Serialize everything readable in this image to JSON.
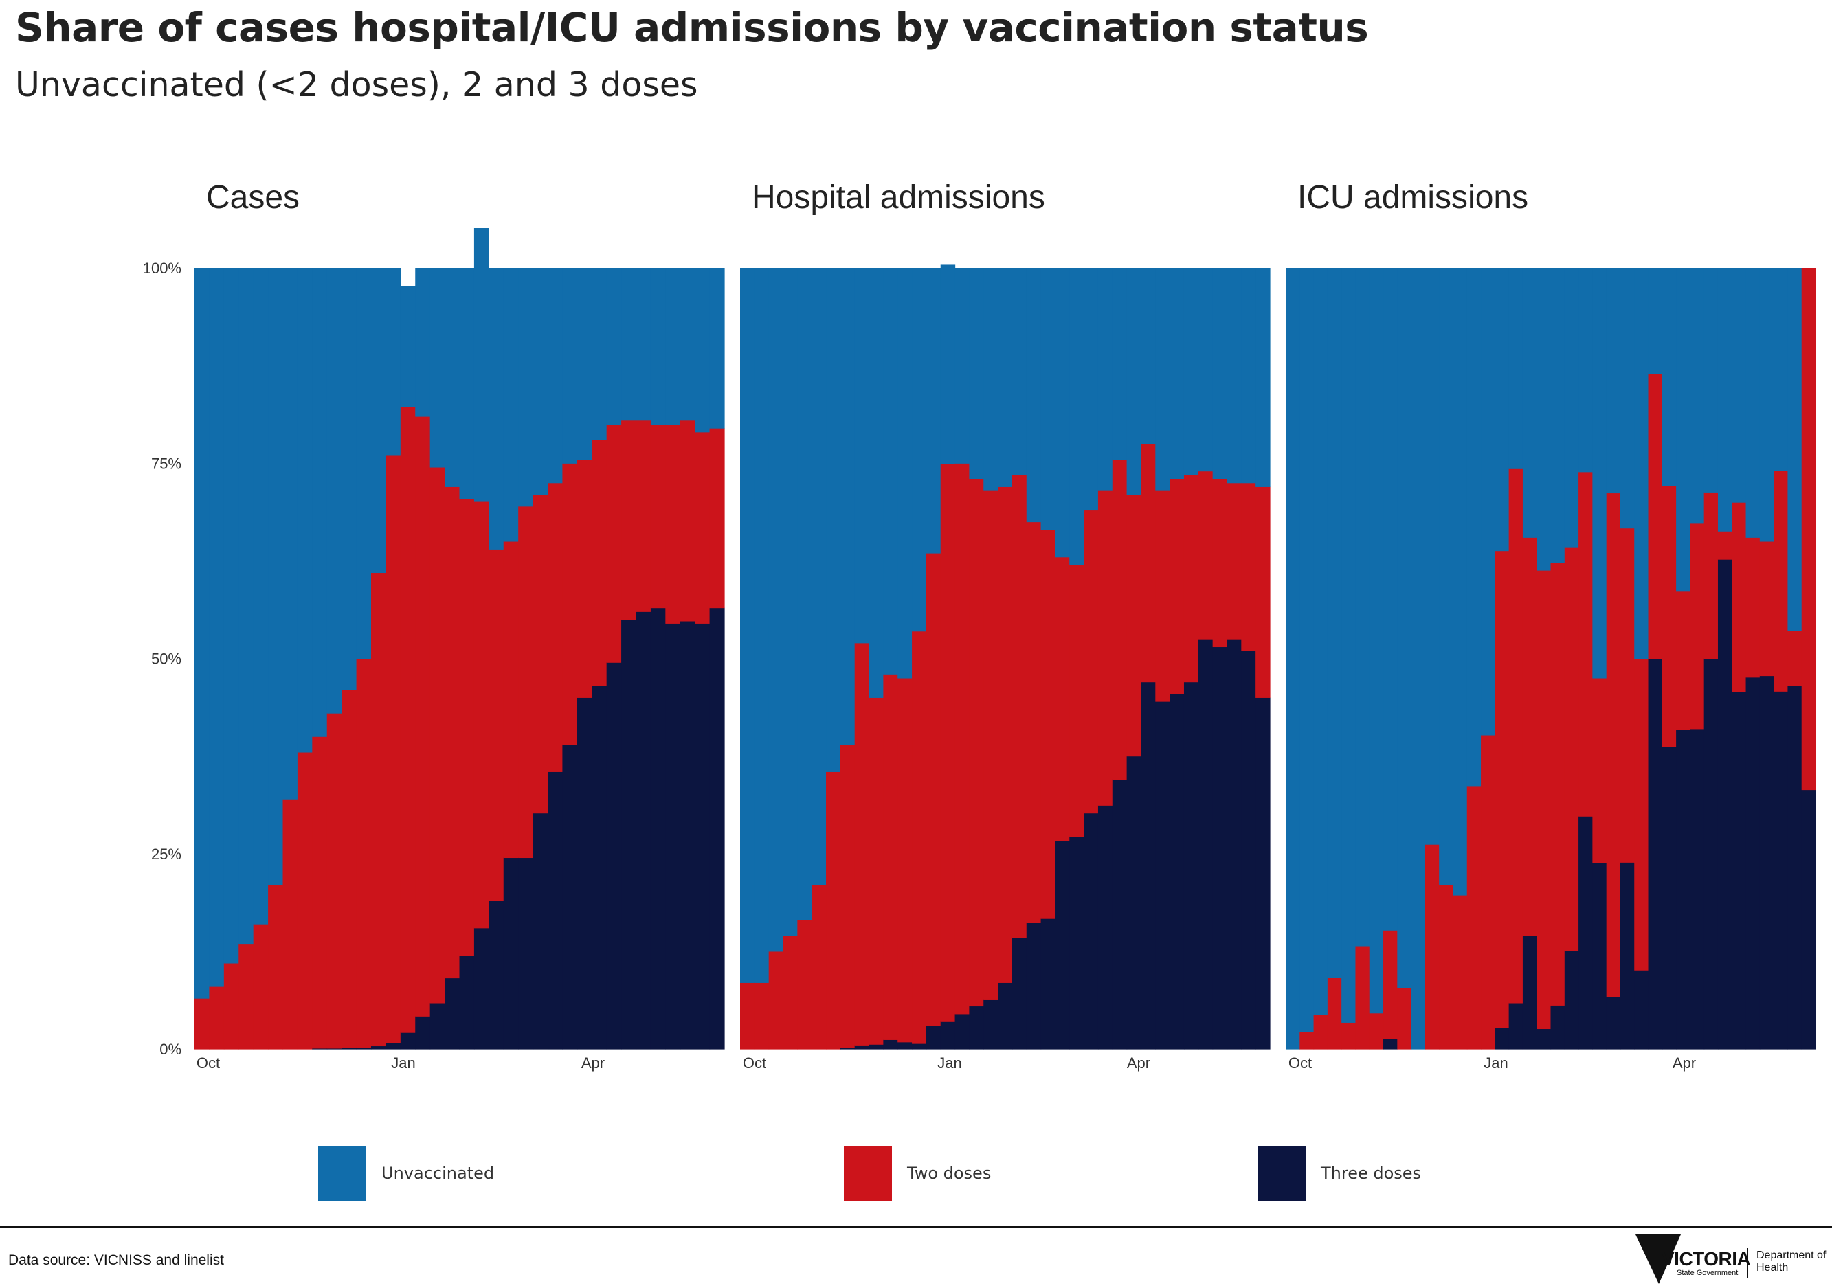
{
  "title": "Share of cases hospital/ICU admissions by vaccination status",
  "subtitle": "Unvaccinated (<2 doses), 2 and 3 doses",
  "source": "Data source: VICNISS and linelist",
  "logo": {
    "wordmark": "VICTORIA",
    "sub": "State Government",
    "dept": "Department of Health"
  },
  "colors": {
    "unvaccinated": "#116dab",
    "two_doses": "#cc141b",
    "three_doses": "#0c1540"
  },
  "chart_data": [
    {
      "type": "area",
      "title": "Cases",
      "stacked": true,
      "x_ticks": [
        "Oct",
        "Jan",
        "Apr"
      ],
      "y_ticks": [
        "0%",
        "25%",
        "50%",
        "75%",
        "100%"
      ],
      "ylim": [
        0,
        100
      ],
      "series": [
        {
          "name": "Unvaccinated",
          "values": [
            93.5,
            92,
            89,
            86.5,
            84,
            79,
            68,
            62,
            60,
            57,
            54,
            50,
            39,
            24,
            15.5,
            19,
            25.5,
            28,
            29.5,
            35,
            36,
            35,
            30.5,
            29,
            27.5,
            25,
            24.5,
            22,
            20,
            19.5,
            19.5,
            20,
            20,
            19.5,
            21,
            20.5
          ]
        },
        {
          "name": "Two doses",
          "values": [
            6.5,
            8,
            11,
            13.5,
            16,
            21,
            32,
            38,
            39.9,
            42.9,
            45.8,
            49.8,
            60.6,
            75.2,
            80.1,
            76.8,
            68.6,
            62.9,
            58.5,
            54.6,
            45,
            40.5,
            45,
            40.8,
            37,
            36,
            30.5,
            31.5,
            30.5,
            25.5,
            24.5,
            23.5,
            25.5,
            25.7,
            24.5,
            23
          ]
        },
        {
          "name": "Three doses",
          "values": [
            0,
            0,
            0,
            0,
            0,
            0,
            0,
            0,
            0.1,
            0.1,
            0.2,
            0.2,
            0.4,
            0.8,
            2.1,
            4.2,
            5.9,
            9.1,
            12,
            15.5,
            19,
            24.5,
            24.5,
            30.2,
            35.5,
            39,
            45,
            46.5,
            49.5,
            55,
            56,
            56.5,
            54.5,
            54.8,
            54.5,
            56.5
          ]
        }
      ]
    },
    {
      "type": "area",
      "title": "Hospital admissions",
      "stacked": true,
      "x_ticks": [
        "Oct",
        "Jan",
        "Apr"
      ],
      "y_ticks": [
        "0%",
        "25%",
        "50%",
        "75%",
        "100%"
      ],
      "ylim": [
        0,
        100
      ],
      "series": [
        {
          "name": "Unvaccinated",
          "values": [
            91.5,
            91.5,
            87.5,
            85.5,
            83.5,
            79,
            64.5,
            61,
            48,
            55,
            52,
            52.5,
            46.5,
            36.5,
            25.5,
            25,
            27,
            28.5,
            28,
            26.5,
            32.5,
            33.5,
            37,
            38,
            31,
            28.5,
            24.5,
            29,
            22.5,
            28.5,
            27,
            26.5,
            26,
            27,
            27.5,
            27.5,
            28
          ]
        },
        {
          "name": "Two doses",
          "values": [
            8.5,
            8.5,
            12.5,
            14.5,
            16.5,
            21,
            35.5,
            38.8,
            51.5,
            44.4,
            46.8,
            46.6,
            52.8,
            60.5,
            71.4,
            70.5,
            67.5,
            65.2,
            63.5,
            59.2,
            51.3,
            49.8,
            36.3,
            34.8,
            38.8,
            40.3,
            41,
            33.5,
            30.5,
            27,
            27.5,
            26.5,
            21.5,
            21.5,
            20,
            21.5,
            27
          ]
        },
        {
          "name": "Three doses",
          "values": [
            0,
            0,
            0,
            0,
            0,
            0,
            0,
            0.2,
            0.5,
            0.6,
            1.2,
            0.9,
            0.7,
            3,
            3.5,
            4.5,
            5.5,
            6.3,
            8.5,
            14.3,
            16.2,
            16.7,
            26.7,
            27.2,
            30.2,
            31.2,
            34.5,
            37.5,
            47,
            44.5,
            45.5,
            47,
            52.5,
            51.5,
            52.5,
            51,
            45
          ]
        }
      ]
    },
    {
      "type": "bar",
      "title": "ICU admissions",
      "stacked": true,
      "x_ticks": [
        "Oct",
        "Jan",
        "Apr"
      ],
      "y_ticks": [
        "0%",
        "25%",
        "50%",
        "75%",
        "100%"
      ],
      "ylim": [
        0,
        100
      ],
      "series": [
        {
          "name": "Unvaccinated",
          "values": [
            100,
            97.8,
            95.6,
            90.8,
            96.6,
            86.8,
            95.4,
            84.8,
            92.2,
            100,
            73.8,
            79,
            80.3,
            66.3,
            59.8,
            36.2,
            25.7,
            34.5,
            38.7,
            37.7,
            35.8,
            26.1,
            52.5,
            28.8,
            33.3,
            50,
            13.5,
            27.9,
            41.4,
            32.7,
            28.7,
            33.7,
            30,
            34.5,
            35,
            25.9,
            46.4,
            0
          ]
        },
        {
          "name": "Two doses",
          "values": [
            0,
            2.2,
            4.4,
            9.2,
            3.4,
            13.2,
            4.6,
            13.9,
            7.8,
            0,
            26.2,
            21,
            19.7,
            33.7,
            40.2,
            61.1,
            68.4,
            51,
            58.7,
            56.7,
            51.6,
            44.1,
            23.7,
            64.5,
            42.8,
            39.9,
            36.5,
            33.4,
            17.7,
            26.3,
            21.3,
            3.6,
            24.3,
            17.9,
            17.2,
            28.3,
            7.1,
            66.8
          ]
        },
        {
          "name": "Three doses",
          "values": [
            0,
            0,
            0,
            0,
            0,
            0,
            0,
            1.3,
            0,
            0,
            0,
            0,
            0,
            0,
            0,
            2.7,
            5.9,
            14.5,
            2.6,
            5.6,
            12.6,
            29.8,
            23.8,
            6.7,
            23.9,
            10.1,
            50,
            38.7,
            40.9,
            41,
            50,
            62.7,
            45.7,
            47.6,
            47.8,
            45.8,
            46.5,
            33.2
          ]
        }
      ]
    }
  ]
}
